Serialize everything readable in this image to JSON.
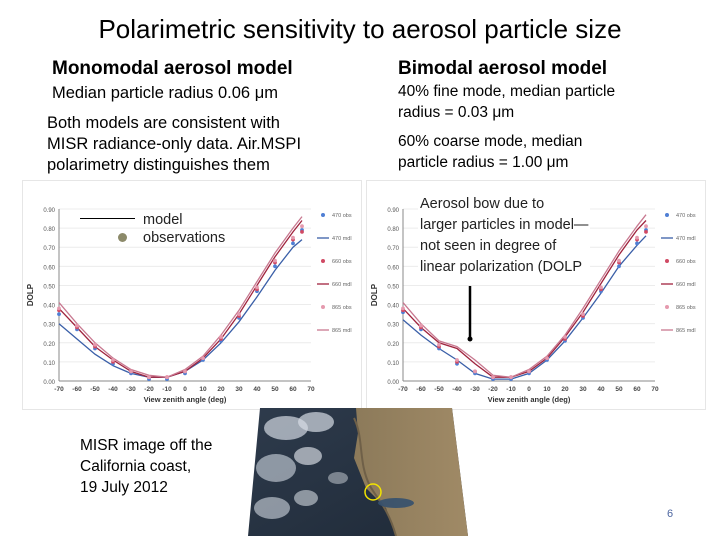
{
  "slide": {
    "title": "Polarimetric sensitivity to aerosol particle size",
    "page_number": "6"
  },
  "left": {
    "heading": "Monomodal aerosol model",
    "subtitle": "Median particle radius 0.06 μm",
    "note": [
      "Both models are consistent with",
      "MISR radiance-only data. Air.MSPI",
      "polarimetry distinguishes them"
    ],
    "legend": {
      "model": "model",
      "observations": "observations"
    }
  },
  "right": {
    "heading": "Bimodal aerosol model",
    "fine": [
      "40% fine mode, median particle",
      "radius = 0.03 μm"
    ],
    "coarse": [
      "60% coarse mode, median",
      "particle radius = 1.00 μm"
    ],
    "annotation": [
      "Aerosol bow due to",
      "larger particles in model—",
      "not seen in degree of",
      "linear polarization (DOLP"
    ]
  },
  "bottom": {
    "caption": [
      "MISR image off the",
      "California coast,",
      "19 July 2012"
    ]
  },
  "colors": {
    "blue": "#4f7fd4",
    "red": "#d04a64",
    "pink": "#e59aae",
    "dark": "#a0243e"
  },
  "chart_data": [
    {
      "type": "line",
      "title": "",
      "xlabel": "View zenith angle (deg)",
      "ylabel": "DOLP",
      "xlim": [
        -70,
        70
      ],
      "ylim": [
        0,
        0.9
      ],
      "xticks": [
        "-70",
        "-60",
        "-50",
        "-40",
        "-30",
        "-20",
        "-10",
        "0",
        "10",
        "20",
        "30",
        "40",
        "50",
        "60",
        "70"
      ],
      "yticks": [
        "0.00",
        "0.10",
        "0.20",
        "0.30",
        "0.40",
        "0.50",
        "0.60",
        "0.70",
        "0.80",
        "0.90"
      ],
      "legend": [
        "470 obs",
        "470 mdl",
        "660 obs",
        "660 mdl",
        "865 obs",
        "865 mdl"
      ],
      "x": [
        -70,
        -60,
        -50,
        -40,
        -30,
        -20,
        -10,
        0,
        10,
        20,
        30,
        40,
        50,
        60,
        65
      ],
      "series": [
        {
          "name": "470 mdl",
          "values": [
            0.3,
            0.22,
            0.14,
            0.08,
            0.04,
            0.02,
            0.02,
            0.05,
            0.11,
            0.2,
            0.31,
            0.44,
            0.58,
            0.7,
            0.74
          ]
        },
        {
          "name": "660 mdl",
          "values": [
            0.38,
            0.28,
            0.18,
            0.11,
            0.05,
            0.02,
            0.02,
            0.05,
            0.12,
            0.22,
            0.35,
            0.5,
            0.65,
            0.78,
            0.84
          ]
        },
        {
          "name": "865 mdl",
          "values": [
            0.41,
            0.3,
            0.2,
            0.12,
            0.06,
            0.03,
            0.02,
            0.06,
            0.13,
            0.24,
            0.37,
            0.52,
            0.67,
            0.8,
            0.86
          ]
        },
        {
          "name": "470 obs",
          "values": [
            0.35,
            0.27,
            0.17,
            0.09,
            0.04,
            0.01,
            0.01,
            0.04,
            0.11,
            0.21,
            0.33,
            0.47,
            0.6,
            0.72,
            0.79
          ]
        },
        {
          "name": "660 obs",
          "values": [
            0.37,
            0.28,
            0.18,
            0.1,
            0.05,
            0.02,
            0.02,
            0.05,
            0.12,
            0.22,
            0.34,
            0.48,
            0.62,
            0.74,
            0.78
          ]
        },
        {
          "name": "865 obs",
          "values": [
            0.38,
            0.29,
            0.19,
            0.11,
            0.05,
            0.02,
            0.02,
            0.05,
            0.12,
            0.23,
            0.35,
            0.49,
            0.63,
            0.75,
            0.81
          ]
        }
      ]
    },
    {
      "type": "line",
      "title": "",
      "xlabel": "View zenith angle (deg)",
      "ylabel": "DOLP",
      "xlim": [
        -70,
        70
      ],
      "ylim": [
        0,
        0.9
      ],
      "xticks": [
        "-70",
        "-60",
        "-50",
        "-40",
        "-30",
        "-20",
        "-10",
        "0",
        "10",
        "20",
        "30",
        "40",
        "50",
        "60",
        "70"
      ],
      "yticks": [
        "0.00",
        "0.10",
        "0.20",
        "0.30",
        "0.40",
        "0.50",
        "0.60",
        "0.70",
        "0.80",
        "0.90"
      ],
      "legend": [
        "470 obs",
        "470 mdl",
        "660 obs",
        "660 mdl",
        "865 obs",
        "865 mdl"
      ],
      "x": [
        -70,
        -60,
        -50,
        -40,
        -30,
        -20,
        -10,
        0,
        10,
        20,
        30,
        40,
        50,
        60,
        65
      ],
      "series": [
        {
          "name": "470 mdl",
          "values": [
            0.32,
            0.24,
            0.17,
            0.11,
            0.04,
            0.01,
            0.01,
            0.04,
            0.11,
            0.21,
            0.33,
            0.46,
            0.6,
            0.71,
            0.76
          ]
        },
        {
          "name": "660 mdl",
          "values": [
            0.38,
            0.28,
            0.2,
            0.17,
            0.09,
            0.02,
            0.02,
            0.05,
            0.12,
            0.23,
            0.36,
            0.51,
            0.66,
            0.79,
            0.84
          ]
        },
        {
          "name": "865 mdl",
          "values": [
            0.41,
            0.3,
            0.21,
            0.18,
            0.11,
            0.03,
            0.02,
            0.06,
            0.13,
            0.24,
            0.38,
            0.53,
            0.68,
            0.81,
            0.87
          ]
        },
        {
          "name": "470 obs",
          "values": [
            0.36,
            0.27,
            0.17,
            0.09,
            0.04,
            0.01,
            0.01,
            0.04,
            0.11,
            0.21,
            0.33,
            0.47,
            0.6,
            0.72,
            0.79
          ]
        },
        {
          "name": "660 obs",
          "values": [
            0.37,
            0.28,
            0.18,
            0.1,
            0.05,
            0.02,
            0.02,
            0.05,
            0.12,
            0.22,
            0.34,
            0.48,
            0.62,
            0.74,
            0.78
          ]
        },
        {
          "name": "865 obs",
          "values": [
            0.38,
            0.29,
            0.19,
            0.11,
            0.05,
            0.02,
            0.02,
            0.05,
            0.12,
            0.23,
            0.35,
            0.49,
            0.63,
            0.75,
            0.81
          ]
        }
      ]
    }
  ]
}
